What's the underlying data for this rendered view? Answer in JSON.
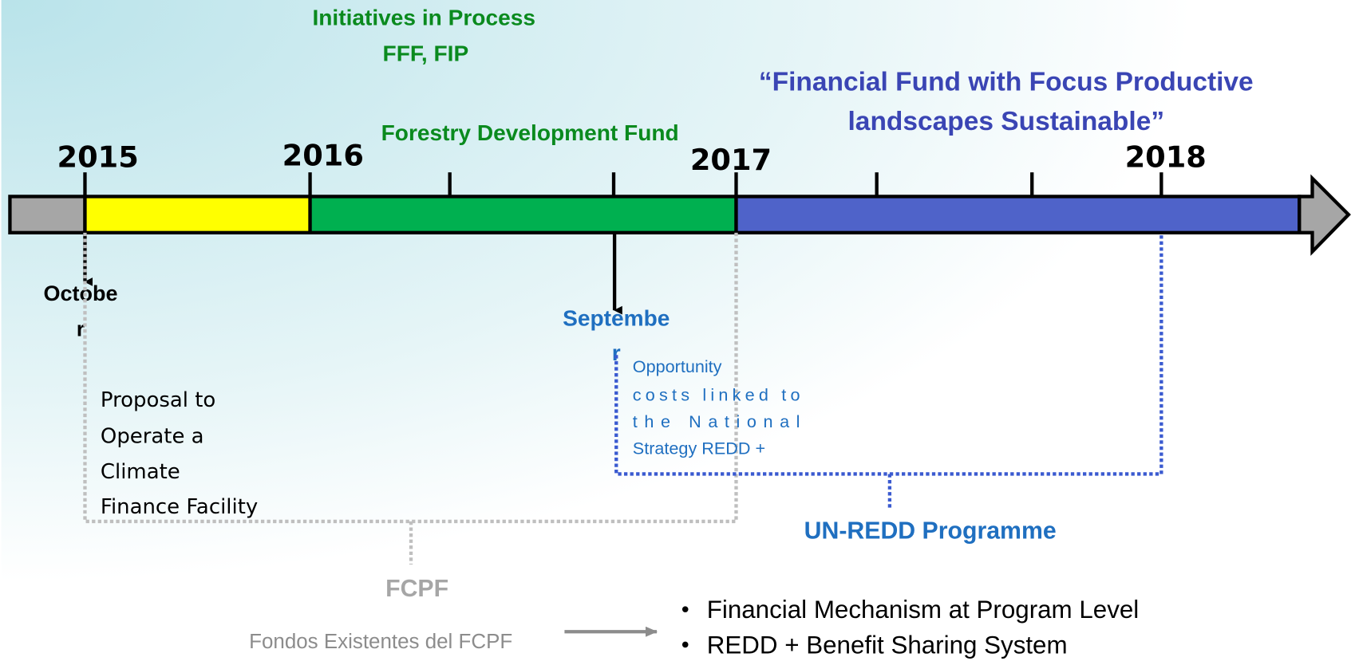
{
  "header": {
    "initiatives": [
      "Initiatives in Process",
      "FFF, FIP"
    ],
    "forestry_fund": "Forestry Development Fund",
    "financial_fund": [
      "“Financial Fund with Focus Productive",
      "landscapes Sustainable”"
    ]
  },
  "timeline": {
    "years": [
      "2015",
      "2016",
      "2017",
      "2018"
    ],
    "october": [
      "Octobe",
      "r"
    ],
    "september": [
      "Septembe",
      "r"
    ]
  },
  "fcpf": {
    "proposal": [
      "Proposal to",
      "Operate a",
      "Climate",
      "Finance Facility"
    ],
    "label": "FCPF",
    "existing_funds": "Fondos Existentes del FCPF"
  },
  "un_redd": {
    "opportunity": [
      "Opportunity",
      "costs linked to",
      "the National",
      "Strategy REDD +"
    ],
    "label": "UN-REDD Programme"
  },
  "outcomes": [
    "Financial Mechanism at Program Level",
    "REDD + Benefit Sharing System"
  ]
}
